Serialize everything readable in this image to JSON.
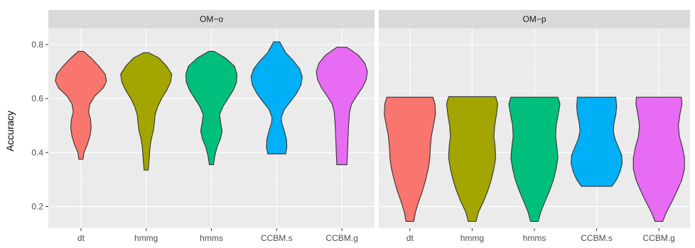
{
  "chart_data": {
    "type": "violin",
    "ylabel": "Accuracy",
    "xlabel": "",
    "ylim": [
      0.12,
      0.86
    ],
    "yticks": [
      0.2,
      0.4,
      0.6,
      0.8
    ],
    "ytick_labels": [
      "0.2",
      "0.4",
      "0.6",
      "0.8"
    ],
    "categories": [
      "dt",
      "hmmg",
      "hmms",
      "CCBM.s",
      "CCBM.g"
    ],
    "grid": true,
    "legend": "none",
    "colors": {
      "dt": "#F8766D",
      "hmmg": "#A3A500",
      "hmms": "#00BF7D",
      "CCBM.s": "#00B0F6",
      "CCBM.g": "#E76BF3"
    },
    "panels": [
      {
        "title": "OM−o",
        "violins": [
          {
            "category": "dt",
            "min": 0.375,
            "max": 0.775,
            "profile": [
              [
                0.375,
                0.08
              ],
              [
                0.4,
                0.12
              ],
              [
                0.43,
                0.25
              ],
              [
                0.46,
                0.35
              ],
              [
                0.49,
                0.4
              ],
              [
                0.52,
                0.38
              ],
              [
                0.55,
                0.3
              ],
              [
                0.58,
                0.35
              ],
              [
                0.61,
                0.55
              ],
              [
                0.64,
                0.88
              ],
              [
                0.665,
                1.0
              ],
              [
                0.69,
                0.95
              ],
              [
                0.72,
                0.7
              ],
              [
                0.75,
                0.4
              ],
              [
                0.775,
                0.1
              ]
            ]
          },
          {
            "category": "hmmg",
            "min": 0.335,
            "max": 0.77,
            "profile": [
              [
                0.335,
                0.08
              ],
              [
                0.38,
                0.12
              ],
              [
                0.42,
                0.15
              ],
              [
                0.45,
                0.2
              ],
              [
                0.48,
                0.28
              ],
              [
                0.51,
                0.32
              ],
              [
                0.54,
                0.35
              ],
              [
                0.57,
                0.45
              ],
              [
                0.6,
                0.6
              ],
              [
                0.63,
                0.8
              ],
              [
                0.66,
                0.95
              ],
              [
                0.69,
                1.0
              ],
              [
                0.72,
                0.8
              ],
              [
                0.75,
                0.5
              ],
              [
                0.77,
                0.1
              ]
            ]
          },
          {
            "category": "hmms",
            "min": 0.355,
            "max": 0.775,
            "profile": [
              [
                0.355,
                0.08
              ],
              [
                0.39,
                0.14
              ],
              [
                0.42,
                0.22
              ],
              [
                0.45,
                0.35
              ],
              [
                0.48,
                0.42
              ],
              [
                0.51,
                0.36
              ],
              [
                0.54,
                0.32
              ],
              [
                0.57,
                0.45
              ],
              [
                0.6,
                0.65
              ],
              [
                0.63,
                0.85
              ],
              [
                0.66,
                0.98
              ],
              [
                0.69,
                1.0
              ],
              [
                0.72,
                0.9
              ],
              [
                0.75,
                0.55
              ],
              [
                0.775,
                0.1
              ]
            ]
          },
          {
            "category": "CCBM.s",
            "min": 0.395,
            "max": 0.81,
            "profile": [
              [
                0.395,
                0.35
              ],
              [
                0.42,
                0.4
              ],
              [
                0.45,
                0.38
              ],
              [
                0.48,
                0.3
              ],
              [
                0.51,
                0.2
              ],
              [
                0.53,
                0.18
              ],
              [
                0.56,
                0.3
              ],
              [
                0.59,
                0.55
              ],
              [
                0.62,
                0.78
              ],
              [
                0.65,
                0.95
              ],
              [
                0.68,
                1.0
              ],
              [
                0.71,
                0.9
              ],
              [
                0.74,
                0.65
              ],
              [
                0.77,
                0.35
              ],
              [
                0.81,
                0.12
              ]
            ]
          },
          {
            "category": "CCBM.g",
            "min": 0.355,
            "max": 0.79,
            "profile": [
              [
                0.355,
                0.2
              ],
              [
                0.4,
                0.22
              ],
              [
                0.45,
                0.24
              ],
              [
                0.5,
                0.26
              ],
              [
                0.55,
                0.3
              ],
              [
                0.58,
                0.38
              ],
              [
                0.61,
                0.58
              ],
              [
                0.64,
                0.8
              ],
              [
                0.67,
                0.95
              ],
              [
                0.7,
                1.0
              ],
              [
                0.73,
                0.9
              ],
              [
                0.76,
                0.65
              ],
              [
                0.79,
                0.2
              ]
            ]
          }
        ]
      },
      {
        "title": "OM−p",
        "violins": [
          {
            "category": "dt",
            "min": 0.145,
            "max": 0.605,
            "profile": [
              [
                0.145,
                0.15
              ],
              [
                0.18,
                0.22
              ],
              [
                0.22,
                0.35
              ],
              [
                0.26,
                0.5
              ],
              [
                0.3,
                0.62
              ],
              [
                0.34,
                0.72
              ],
              [
                0.38,
                0.78
              ],
              [
                0.42,
                0.8
              ],
              [
                0.46,
                0.84
              ],
              [
                0.5,
                0.92
              ],
              [
                0.54,
                1.0
              ],
              [
                0.58,
                0.98
              ],
              [
                0.605,
                0.9
              ]
            ]
          },
          {
            "category": "hmmg",
            "min": 0.145,
            "max": 0.607,
            "profile": [
              [
                0.145,
                0.15
              ],
              [
                0.18,
                0.25
              ],
              [
                0.22,
                0.45
              ],
              [
                0.26,
                0.62
              ],
              [
                0.3,
                0.75
              ],
              [
                0.34,
                0.85
              ],
              [
                0.38,
                0.92
              ],
              [
                0.42,
                0.9
              ],
              [
                0.46,
                0.85
              ],
              [
                0.5,
                0.88
              ],
              [
                0.54,
                0.95
              ],
              [
                0.58,
                1.0
              ],
              [
                0.607,
                0.92
              ]
            ]
          },
          {
            "category": "hmms",
            "min": 0.145,
            "max": 0.605,
            "profile": [
              [
                0.145,
                0.15
              ],
              [
                0.18,
                0.25
              ],
              [
                0.22,
                0.42
              ],
              [
                0.26,
                0.6
              ],
              [
                0.3,
                0.75
              ],
              [
                0.34,
                0.85
              ],
              [
                0.38,
                0.92
              ],
              [
                0.42,
                0.88
              ],
              [
                0.46,
                0.83
              ],
              [
                0.5,
                0.85
              ],
              [
                0.54,
                0.93
              ],
              [
                0.58,
                1.0
              ],
              [
                0.605,
                0.92
              ]
            ]
          },
          {
            "category": "CCBM.s",
            "min": 0.275,
            "max": 0.605,
            "profile": [
              [
                0.275,
                0.6
              ],
              [
                0.3,
                0.78
              ],
              [
                0.33,
                0.92
              ],
              [
                0.36,
                1.0
              ],
              [
                0.39,
                0.98
              ],
              [
                0.42,
                0.85
              ],
              [
                0.45,
                0.72
              ],
              [
                0.48,
                0.65
              ],
              [
                0.51,
                0.68
              ],
              [
                0.54,
                0.75
              ],
              [
                0.57,
                0.78
              ],
              [
                0.605,
                0.75
              ]
            ]
          },
          {
            "category": "CCBM.g",
            "min": 0.145,
            "max": 0.605,
            "profile": [
              [
                0.145,
                0.15
              ],
              [
                0.18,
                0.3
              ],
              [
                0.22,
                0.52
              ],
              [
                0.26,
                0.72
              ],
              [
                0.3,
                0.9
              ],
              [
                0.34,
                1.0
              ],
              [
                0.38,
                1.0
              ],
              [
                0.42,
                0.92
              ],
              [
                0.46,
                0.8
              ],
              [
                0.5,
                0.76
              ],
              [
                0.54,
                0.82
              ],
              [
                0.58,
                0.9
              ],
              [
                0.605,
                0.88
              ]
            ]
          }
        ]
      }
    ]
  }
}
